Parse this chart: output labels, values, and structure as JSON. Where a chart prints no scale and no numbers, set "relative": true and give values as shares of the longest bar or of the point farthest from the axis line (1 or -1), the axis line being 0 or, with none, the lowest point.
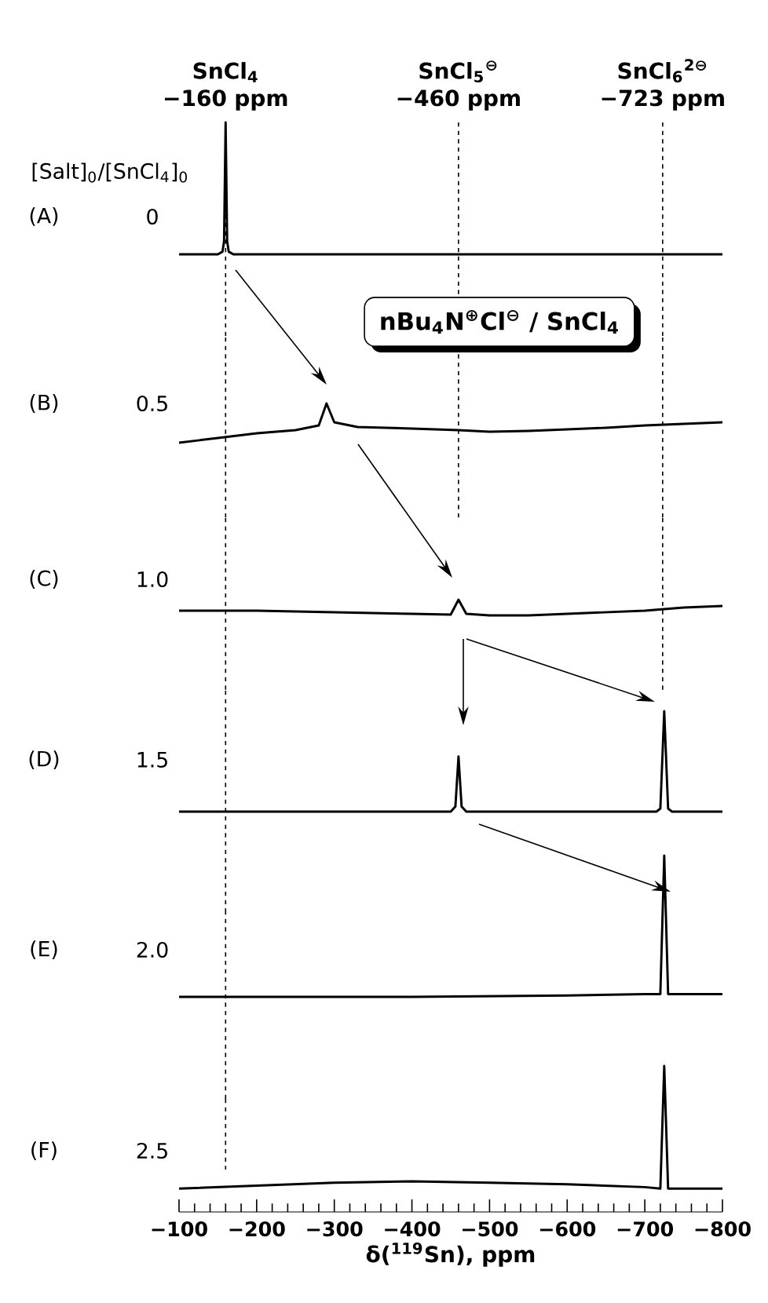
{
  "chart_data": [
    {
      "type": "line",
      "relative": true,
      "xlim": [
        -100,
        -800
      ],
      "tick_labels": false,
      "color": "#000000",
      "x": [
        -100,
        -150,
        -156,
        -158,
        -160,
        -162,
        -164,
        -170,
        -300,
        -500,
        -700,
        -800
      ],
      "values": [
        0,
        0,
        0.02,
        0.1,
        1,
        0.1,
        0.02,
        0,
        0,
        0,
        0,
        0
      ],
      "ref_lines": [
        {
          "axis": "x",
          "value": -160,
          "label": "SnCl$_{4}$ −160 ppm",
          "line_style": "dotted"
        },
        {
          "axis": "x",
          "value": -460,
          "label": "SnCl$_{5}$$^{⊖}$ −460 ppm",
          "line_style": "dotted"
        },
        {
          "axis": "x",
          "value": -723,
          "label": "SnCl$_{6}$$^{2⊖}$ −723 ppm",
          "line_style": "dotted"
        }
      ],
      "annotations": [
        "[Salt]$_{0}$/[SnCl$_{4}$]$_{0}$",
        "(A)",
        "0"
      ]
    },
    {
      "type": "line",
      "relative": true,
      "xlim": [
        -100,
        -800
      ],
      "tick_labels": false,
      "color": "#000000",
      "x": [
        -100,
        -150,
        -200,
        -250,
        -280,
        -290,
        -300,
        -330,
        -400,
        -460,
        -500,
        -550,
        -600,
        -650,
        -700,
        -750,
        -800
      ],
      "values": [
        0,
        0.12,
        0.24,
        0.32,
        0.44,
        1,
        0.52,
        0.4,
        0.36,
        0.32,
        0.28,
        0.3,
        0.34,
        0.38,
        0.44,
        0.48,
        0.52
      ],
      "ref_lines": [
        {
          "axis": "x",
          "value": -160,
          "line_style": "dotted"
        },
        {
          "axis": "x",
          "value": -460,
          "line_style": "dotted"
        },
        {
          "axis": "x",
          "value": -723,
          "line_style": "dotted"
        }
      ],
      "annotations": [
        "nBu$_{4}$N$^{⊕}$Cl$^{⊖}$ / SnCl$_{4}$",
        "(B)",
        "0.5"
      ]
    },
    {
      "type": "line",
      "relative": true,
      "xlim": [
        -100,
        -800
      ],
      "tick_labels": false,
      "color": "#000000",
      "x": [
        -100,
        -200,
        -300,
        -400,
        -450,
        -460,
        -470,
        -500,
        -550,
        -600,
        -700,
        -750,
        -800
      ],
      "values": [
        0.3,
        0.3,
        0.2,
        0.1,
        0.05,
        1,
        0.1,
        0,
        0,
        0.1,
        0.3,
        0.5,
        0.6
      ],
      "ref_lines": [
        {
          "axis": "x",
          "value": -160,
          "line_style": "dotted"
        },
        {
          "axis": "x",
          "value": -723,
          "line_style": "dotted"
        }
      ],
      "annotations": [
        "(C)",
        "1.0"
      ]
    },
    {
      "type": "line",
      "relative": true,
      "xlim": [
        -100,
        -800
      ],
      "tick_labels": false,
      "color": "#000000",
      "x": [
        -100,
        -300,
        -450,
        -456,
        -460,
        -464,
        -470,
        -600,
        -715,
        -720,
        -725,
        -730,
        -735,
        -800
      ],
      "values": [
        0,
        0,
        0,
        0.05,
        0.55,
        0.05,
        0,
        0,
        0,
        0.03,
        1,
        0.03,
        0,
        0
      ],
      "ref_lines": [
        {
          "axis": "x",
          "value": -160,
          "line_style": "dotted"
        }
      ],
      "annotations": [
        "(D)",
        "1.5"
      ]
    },
    {
      "type": "line",
      "relative": true,
      "xlim": [
        -100,
        -800
      ],
      "tick_labels": false,
      "color": "#000000",
      "x": [
        -100,
        -400,
        -600,
        -700,
        -720,
        -725,
        -730,
        -800
      ],
      "values": [
        0,
        0,
        0.01,
        0.02,
        0.02,
        1,
        0.02,
        0.02
      ],
      "ref_lines": [
        {
          "axis": "x",
          "value": -160,
          "line_style": "dotted"
        }
      ],
      "annotations": [
        "(E)",
        "2.0"
      ]
    },
    {
      "type": "line",
      "relative": true,
      "xlim": [
        -100,
        -800
      ],
      "tick_labels": "x",
      "color": "#000000",
      "xticks": [
        {
          "value": -100,
          "label": "−100"
        },
        {
          "value": -200,
          "label": "−200"
        },
        {
          "value": -300,
          "label": "−300"
        },
        {
          "value": -400,
          "label": "−400"
        },
        {
          "value": -500,
          "label": "−500"
        },
        {
          "value": -600,
          "label": "−600"
        },
        {
          "value": -700,
          "label": "−700"
        },
        {
          "value": -800,
          "label": "−800"
        }
      ],
      "xlabel": "δ($^{119}$Sn), ppm",
      "x": [
        -100,
        -200,
        -300,
        -400,
        -500,
        -600,
        -700,
        -720,
        -725,
        -730,
        -800
      ],
      "values": [
        0.16,
        0.18,
        0.2,
        0.21,
        0.2,
        0.19,
        0.17,
        0.16,
        1,
        0.16,
        0.16
      ],
      "ref_lines": [
        {
          "axis": "x",
          "value": -160,
          "line_style": "dotted"
        }
      ],
      "annotations": [
        "(F)",
        "2.5"
      ]
    }
  ]
}
